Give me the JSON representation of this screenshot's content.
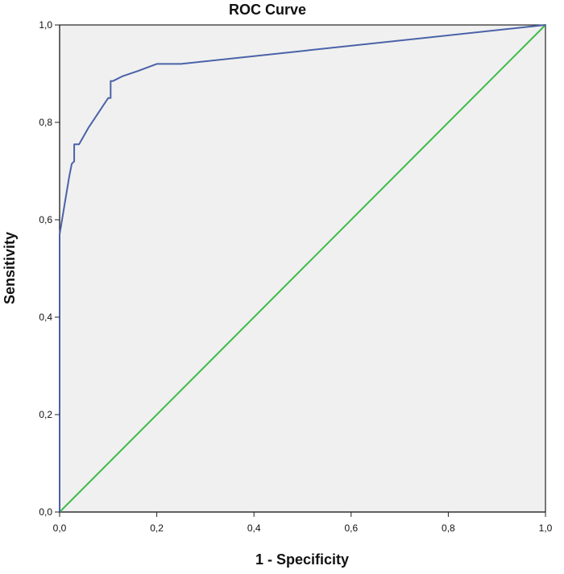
{
  "chart_data": {
    "type": "line",
    "title": "ROC Curve",
    "xlabel": "1 - Specificity",
    "ylabel": "Sensitivity",
    "xlim": [
      0,
      1
    ],
    "ylim": [
      0,
      1
    ],
    "x_ticks": [
      "0,0",
      "0,2",
      "0,4",
      "0,6",
      "0,8",
      "1,0"
    ],
    "y_ticks": [
      "0,0",
      "0,2",
      "0,4",
      "0,6",
      "0,8",
      "1,0"
    ],
    "grid": false,
    "background_color": "#f0f0f0",
    "series": [
      {
        "color": "#4a62a8",
        "x": [
          0.0,
          0.0,
          0.005,
          0.01,
          0.015,
          0.02,
          0.025,
          0.03,
          0.03,
          0.04,
          0.06,
          0.08,
          0.1,
          0.105,
          0.105,
          0.11,
          0.13,
          0.16,
          0.2,
          0.25,
          1.0
        ],
        "y": [
          0.0,
          0.57,
          0.6,
          0.63,
          0.66,
          0.69,
          0.715,
          0.72,
          0.755,
          0.755,
          0.79,
          0.82,
          0.85,
          0.85,
          0.885,
          0.885,
          0.895,
          0.905,
          0.92,
          0.92,
          1.0
        ]
      },
      {
        "color": "#3dbb4a",
        "x": [
          0,
          1
        ],
        "y": [
          0,
          1
        ]
      }
    ]
  }
}
